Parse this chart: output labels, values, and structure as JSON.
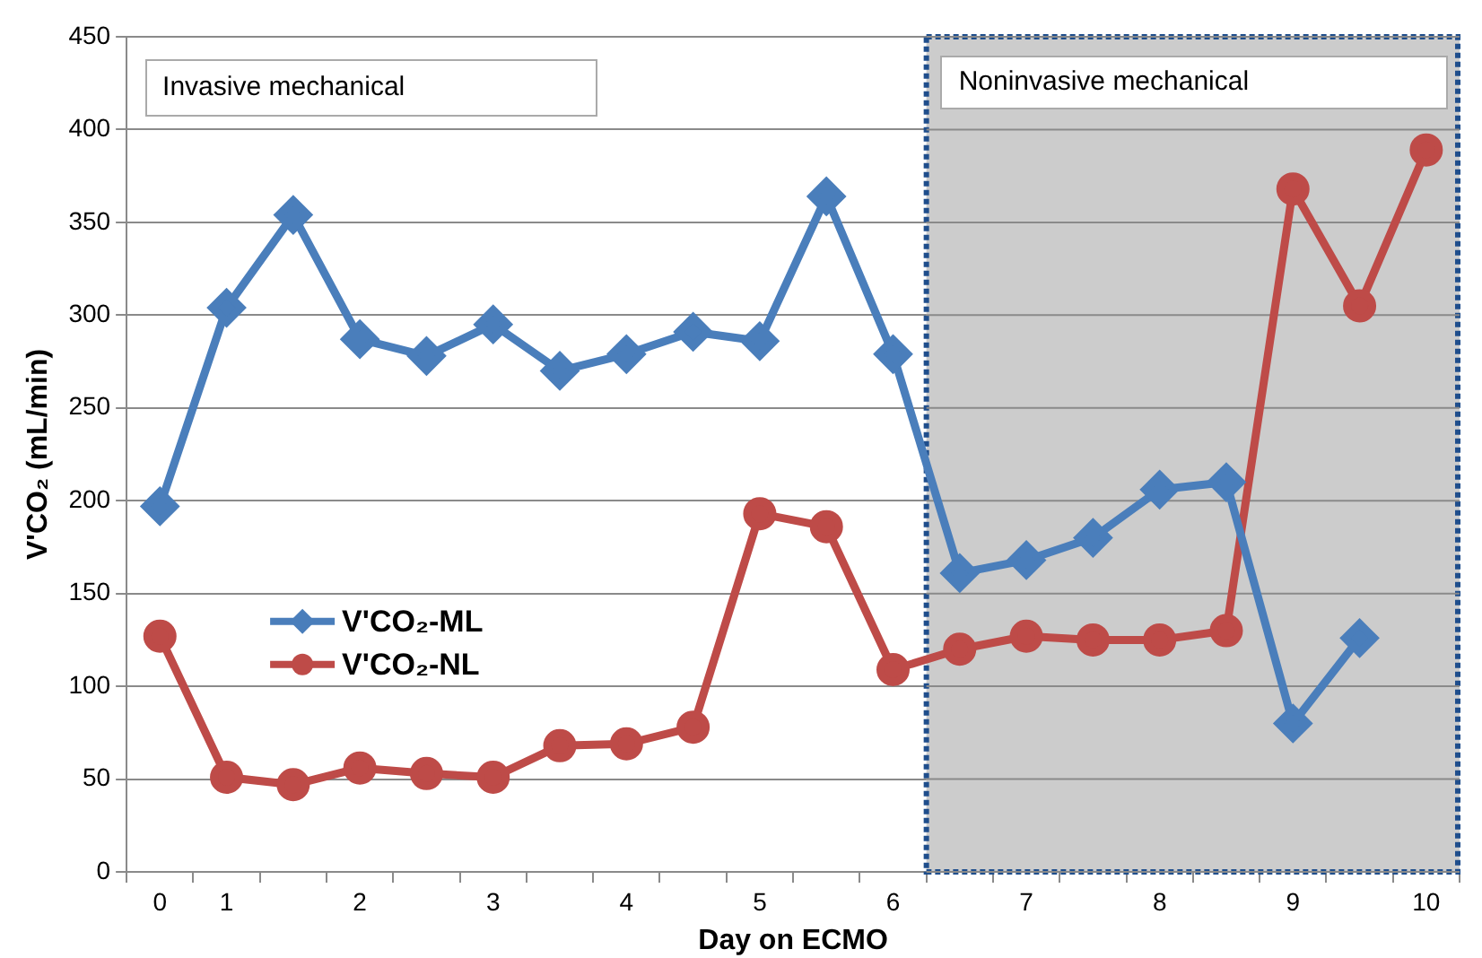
{
  "chart_data": {
    "type": "line",
    "xlabel": "Day on ECMO",
    "ylabel": "V'CO₂ (mL/min)",
    "categories": [
      "0",
      "1",
      null,
      "2",
      null,
      "3",
      null,
      "4",
      null,
      "5",
      null,
      "6",
      null,
      "7",
      null,
      "8",
      null,
      "9",
      null,
      "10"
    ],
    "series": [
      {
        "name": "V'CO₂-ML",
        "color": "#4a7ebb",
        "marker": "diamond",
        "values": [
          197,
          304,
          354,
          287,
          278,
          295,
          270,
          279,
          291,
          286,
          364,
          279,
          161,
          168,
          180,
          206,
          210,
          80,
          126,
          null
        ]
      },
      {
        "name": "V'CO₂-NL",
        "color": "#be4b48",
        "marker": "circle",
        "values": [
          127,
          51,
          47,
          56,
          53,
          51,
          68,
          69,
          78,
          193,
          186,
          109,
          120,
          127,
          125,
          125,
          130,
          368,
          305,
          389
        ]
      }
    ],
    "ylim": [
      0,
      450
    ],
    "yticks": [
      0,
      50,
      100,
      150,
      200,
      250,
      300,
      350,
      400,
      450
    ],
    "grid": "y",
    "legend": "left",
    "bands": [
      {
        "axis": "x",
        "from": "6",
        "to": "10",
        "label": "Noninvasive mechanical",
        "color": "#cccccc"
      }
    ],
    "annotations": [
      "Invasive mechanical"
    ]
  }
}
